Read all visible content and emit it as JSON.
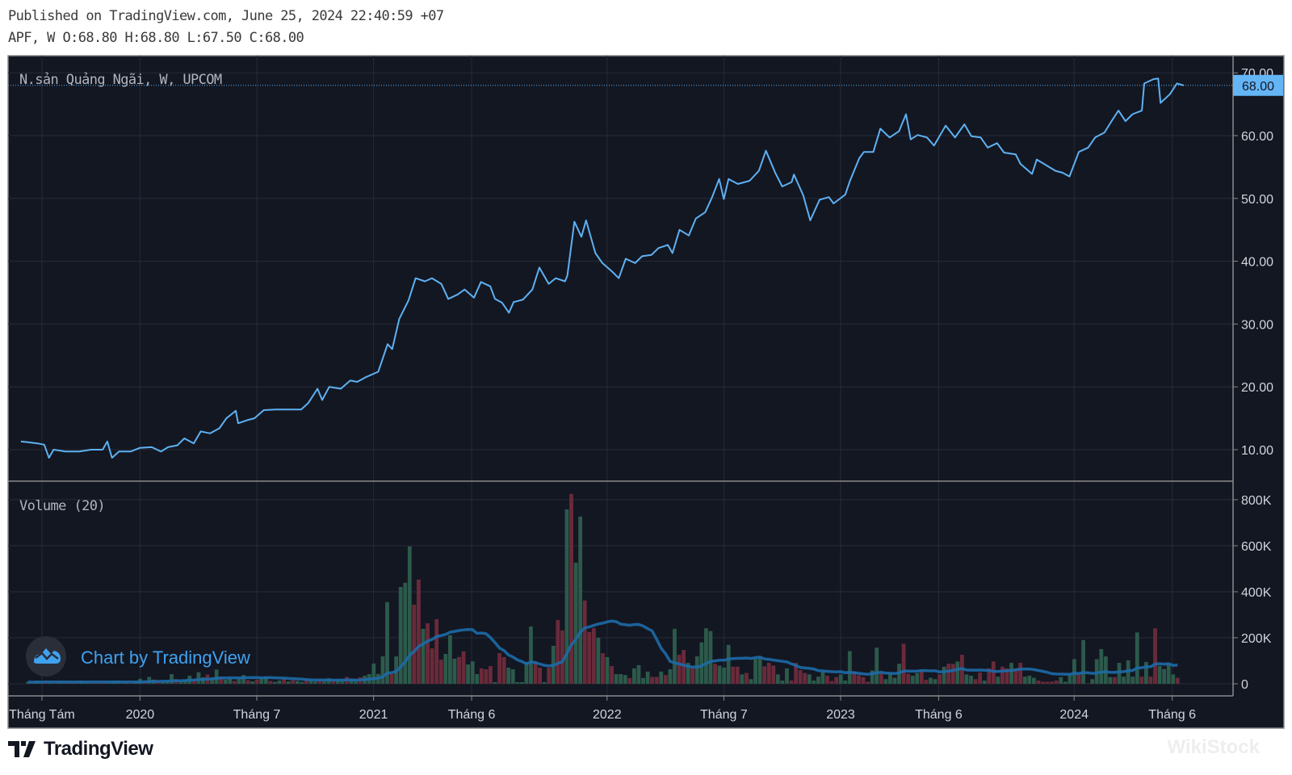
{
  "header": {
    "published": "Published on TradingView.com, June 25, 2024 22:40:59 +07",
    "ohlc": "APF, W O:68.80 H:68.80 L:67.50 C:68.00"
  },
  "legend": {
    "symbol": "N.sản Quảng Ngãi, W, UPCOM",
    "volume": "Volume (20)"
  },
  "watermark": "Chart by TradingView",
  "brand": "TradingView",
  "corner_logo": "WikiStock",
  "colors": {
    "background": "#131722",
    "price_line": "#5eb1f2",
    "last_price_bg": "#64b5f6",
    "vol_up": "#2c5a4b",
    "vol_down": "#6a2a3a",
    "vol_ma": "#1d6aa8",
    "grid": "#262b38"
  },
  "chart_data": {
    "type": "line",
    "title": "N.sản Quảng Ngãi, W, UPCOM",
    "last_price": 68.0,
    "last_price_label": "68.00",
    "price_axis": {
      "ticks": [
        "10.00",
        "20.00",
        "30.00",
        "40.00",
        "50.00",
        "60.00",
        "70.00"
      ],
      "tick_values": [
        10,
        20,
        30,
        40,
        50,
        60,
        70
      ]
    },
    "volume_axis": {
      "ticks": [
        "0",
        "200K",
        "400K",
        "600K",
        "800K"
      ],
      "tick_values": [
        0,
        200,
        400,
        600,
        800
      ],
      "unit": "K"
    },
    "time_axis": {
      "labels": [
        "Tháng Tám",
        "2020",
        "Tháng 7",
        "2021",
        "Tháng 6",
        "2022",
        "Tháng 7",
        "2023",
        "Tháng 6",
        "2024",
        "Tháng 6"
      ],
      "positions_year": [
        2019.58,
        2020.0,
        2020.5,
        2021.0,
        2021.42,
        2022.0,
        2022.5,
        2023.0,
        2023.42,
        2024.0,
        2024.42
      ]
    },
    "price_series": [
      [
        2019.49,
        11.3
      ],
      [
        2019.52,
        11.2
      ],
      [
        2019.56,
        11.0
      ],
      [
        2019.59,
        10.8
      ],
      [
        2019.61,
        8.7
      ],
      [
        2019.63,
        10.0
      ],
      [
        2019.68,
        9.7
      ],
      [
        2019.74,
        9.7
      ],
      [
        2019.79,
        10.0
      ],
      [
        2019.84,
        10.0
      ],
      [
        2019.86,
        11.3
      ],
      [
        2019.88,
        8.7
      ],
      [
        2019.91,
        9.7
      ],
      [
        2019.96,
        9.7
      ],
      [
        2020.0,
        10.3
      ],
      [
        2020.05,
        10.4
      ],
      [
        2020.09,
        9.7
      ],
      [
        2020.12,
        10.4
      ],
      [
        2020.16,
        10.7
      ],
      [
        2020.19,
        11.8
      ],
      [
        2020.23,
        11.0
      ],
      [
        2020.26,
        12.9
      ],
      [
        2020.3,
        12.6
      ],
      [
        2020.34,
        13.4
      ],
      [
        2020.37,
        15.0
      ],
      [
        2020.41,
        16.2
      ],
      [
        2020.42,
        14.2
      ],
      [
        2020.46,
        14.7
      ],
      [
        2020.49,
        15.0
      ],
      [
        2020.53,
        16.3
      ],
      [
        2020.58,
        16.4
      ],
      [
        2020.63,
        16.4
      ],
      [
        2020.69,
        16.4
      ],
      [
        2020.72,
        17.4
      ],
      [
        2020.76,
        19.7
      ],
      [
        2020.78,
        17.9
      ],
      [
        2020.81,
        20.0
      ],
      [
        2020.86,
        19.7
      ],
      [
        2020.9,
        21.0
      ],
      [
        2020.93,
        20.8
      ],
      [
        2020.97,
        21.6
      ],
      [
        2021.02,
        22.4
      ],
      [
        2021.06,
        26.8
      ],
      [
        2021.08,
        26.0
      ],
      [
        2021.11,
        30.8
      ],
      [
        2021.15,
        33.8
      ],
      [
        2021.18,
        37.3
      ],
      [
        2021.22,
        36.8
      ],
      [
        2021.25,
        37.3
      ],
      [
        2021.29,
        36.4
      ],
      [
        2021.32,
        34.0
      ],
      [
        2021.36,
        34.7
      ],
      [
        2021.39,
        35.5
      ],
      [
        2021.43,
        34.2
      ],
      [
        2021.46,
        36.7
      ],
      [
        2021.5,
        36.0
      ],
      [
        2021.52,
        34.0
      ],
      [
        2021.55,
        33.4
      ],
      [
        2021.58,
        31.8
      ],
      [
        2021.6,
        33.5
      ],
      [
        2021.64,
        33.9
      ],
      [
        2021.68,
        35.5
      ],
      [
        2021.71,
        39.0
      ],
      [
        2021.75,
        36.4
      ],
      [
        2021.78,
        37.3
      ],
      [
        2021.82,
        36.8
      ],
      [
        2021.83,
        37.7
      ],
      [
        2021.86,
        46.3
      ],
      [
        2021.89,
        43.9
      ],
      [
        2021.91,
        46.5
      ],
      [
        2021.95,
        41.3
      ],
      [
        2021.98,
        39.7
      ],
      [
        2022.02,
        38.4
      ],
      [
        2022.05,
        37.3
      ],
      [
        2022.08,
        40.4
      ],
      [
        2022.12,
        39.7
      ],
      [
        2022.15,
        40.8
      ],
      [
        2022.19,
        41.0
      ],
      [
        2022.22,
        42.1
      ],
      [
        2022.26,
        42.6
      ],
      [
        2022.28,
        41.3
      ],
      [
        2022.31,
        45.0
      ],
      [
        2022.35,
        44.1
      ],
      [
        2022.38,
        46.8
      ],
      [
        2022.42,
        47.8
      ],
      [
        2022.45,
        50.2
      ],
      [
        2022.48,
        53.1
      ],
      [
        2022.5,
        49.9
      ],
      [
        2022.52,
        53.1
      ],
      [
        2022.56,
        52.3
      ],
      [
        2022.61,
        52.8
      ],
      [
        2022.65,
        54.4
      ],
      [
        2022.68,
        57.6
      ],
      [
        2022.72,
        54.1
      ],
      [
        2022.75,
        51.9
      ],
      [
        2022.79,
        52.6
      ],
      [
        2022.8,
        53.8
      ],
      [
        2022.84,
        50.5
      ],
      [
        2022.87,
        46.5
      ],
      [
        2022.91,
        49.8
      ],
      [
        2022.95,
        50.2
      ],
      [
        2022.97,
        49.2
      ],
      [
        2023.02,
        50.6
      ],
      [
        2023.04,
        52.8
      ],
      [
        2023.08,
        56.4
      ],
      [
        2023.1,
        57.4
      ],
      [
        2023.14,
        57.4
      ],
      [
        2023.17,
        61.1
      ],
      [
        2023.21,
        59.7
      ],
      [
        2023.25,
        60.7
      ],
      [
        2023.28,
        63.4
      ],
      [
        2023.3,
        59.4
      ],
      [
        2023.33,
        60.1
      ],
      [
        2023.37,
        59.7
      ],
      [
        2023.4,
        58.4
      ],
      [
        2023.45,
        61.6
      ],
      [
        2023.49,
        59.7
      ],
      [
        2023.53,
        61.8
      ],
      [
        2023.56,
        59.9
      ],
      [
        2023.6,
        59.7
      ],
      [
        2023.63,
        58.1
      ],
      [
        2023.67,
        58.8
      ],
      [
        2023.7,
        57.3
      ],
      [
        2023.75,
        57.0
      ],
      [
        2023.77,
        55.5
      ],
      [
        2023.82,
        53.9
      ],
      [
        2023.84,
        56.2
      ],
      [
        2023.88,
        55.3
      ],
      [
        2023.92,
        54.4
      ],
      [
        2023.95,
        54.1
      ],
      [
        2023.98,
        53.5
      ],
      [
        2024.02,
        57.4
      ],
      [
        2024.06,
        58.1
      ],
      [
        2024.09,
        59.7
      ],
      [
        2024.13,
        60.5
      ],
      [
        2024.16,
        62.3
      ],
      [
        2024.19,
        64.0
      ],
      [
        2024.22,
        62.3
      ],
      [
        2024.25,
        63.4
      ],
      [
        2024.29,
        64.0
      ],
      [
        2024.3,
        68.3
      ],
      [
        2024.34,
        69.0
      ],
      [
        2024.36,
        69.1
      ],
      [
        2024.37,
        65.2
      ],
      [
        2024.41,
        66.6
      ],
      [
        2024.44,
        68.3
      ],
      [
        2024.47,
        68.0
      ]
    ],
    "volume_start_year": 2019.52,
    "volume_k": [
      8,
      6,
      10,
      5,
      12,
      7,
      5,
      9,
      6,
      8,
      5,
      10,
      12,
      6,
      8,
      5,
      7,
      9,
      6,
      10,
      14,
      8,
      6,
      5,
      9,
      22,
      12,
      30,
      18,
      10,
      8,
      15,
      42,
      20,
      12,
      18,
      35,
      20,
      50,
      28,
      40,
      25,
      62,
      30,
      18,
      24,
      12,
      20,
      38,
      15,
      10,
      18,
      25,
      30,
      12,
      8,
      14,
      22,
      10,
      16,
      12,
      8,
      20,
      14,
      10,
      18,
      12,
      24,
      16,
      20,
      14,
      30,
      22,
      18,
      28,
      35,
      42,
      88,
      43,
      119,
      355,
      43,
      119,
      421,
      439,
      597,
      344,
      453,
      239,
      263,
      154,
      281,
      105,
      130,
      211,
      109,
      116,
      141,
      84,
      98,
      42,
      67,
      63,
      77,
      7,
      133,
      116,
      70,
      63,
      7,
      7,
      95,
      249,
      95,
      70,
      7,
      70,
      165,
      277,
      232,
      758,
      825,
      526,
      727,
      362,
      225,
      242,
      200,
      133,
      116,
      77,
      42,
      42,
      38,
      25,
      67,
      81,
      25,
      53,
      30,
      30,
      53,
      38,
      63,
      239,
      126,
      147,
      91,
      70,
      119,
      180,
      241,
      229,
      87,
      79,
      70,
      169,
      74,
      74,
      41,
      47,
      20,
      107,
      114,
      76,
      91,
      79,
      41,
      14,
      67,
      14,
      91,
      60,
      47,
      41,
      14,
      31,
      52,
      35,
      12,
      29,
      41,
      14,
      142,
      52,
      37,
      29,
      9,
      58,
      157,
      47,
      20,
      47,
      26,
      87,
      174,
      44,
      35,
      47,
      58,
      17,
      26,
      20,
      41,
      74,
      87,
      87,
      97,
      126,
      41,
      35,
      20,
      49,
      14,
      67,
      97,
      31,
      74,
      67,
      91,
      67,
      91,
      31,
      35,
      26,
      14,
      9,
      9,
      9,
      14,
      29,
      9,
      41,
      107,
      41,
      190,
      2,
      20,
      107,
      151,
      119,
      29,
      29,
      91,
      31,
      102,
      31,
      223,
      31,
      95,
      31,
      241,
      78,
      64,
      87,
      41,
      26
    ],
    "volume_up": [
      1,
      0,
      1,
      1,
      0,
      1,
      0,
      1,
      1,
      0,
      1,
      0,
      1,
      1,
      0,
      1,
      0,
      0,
      1,
      1,
      1,
      0,
      1,
      0,
      1,
      1,
      0,
      1,
      1,
      0,
      1,
      1,
      1,
      0,
      1,
      1,
      1,
      0,
      1,
      1,
      0,
      1,
      1,
      0,
      1,
      1,
      0,
      1,
      1,
      0,
      1,
      0,
      1,
      1,
      0,
      1,
      1,
      0,
      1,
      0,
      1,
      1,
      0,
      1,
      1,
      0,
      1,
      1,
      0,
      1,
      1,
      0,
      1,
      1,
      0,
      1,
      1,
      1,
      1,
      1,
      1,
      0,
      1,
      1,
      1,
      1,
      0,
      0,
      1,
      0,
      0,
      0,
      0,
      1,
      1,
      1,
      0,
      0,
      1,
      1,
      1,
      0,
      0,
      0,
      1,
      0,
      0,
      1,
      1,
      1,
      1,
      1,
      1,
      0,
      0,
      1,
      0,
      1,
      0,
      0,
      1,
      0,
      1,
      1,
      0,
      0,
      0,
      1,
      0,
      1,
      0,
      1,
      1,
      1,
      0,
      1,
      1,
      1,
      1,
      0,
      0,
      1,
      0,
      1,
      1,
      0,
      0,
      1,
      0,
      1,
      1,
      1,
      1,
      0,
      1,
      1,
      1,
      0,
      0,
      1,
      0,
      1,
      1,
      1,
      0,
      0,
      0,
      1,
      1,
      1,
      0,
      0,
      0,
      0,
      1,
      1,
      1,
      1,
      0,
      0,
      0,
      1,
      1,
      1,
      0,
      0,
      0,
      0,
      1,
      1,
      0,
      1,
      1,
      1,
      1,
      0,
      0,
      1,
      1,
      0,
      0,
      1,
      1,
      0,
      1,
      0,
      0,
      1,
      0,
      1,
      1,
      0,
      0,
      1,
      0,
      0,
      1,
      0,
      0,
      1,
      0,
      0,
      1,
      1,
      1,
      0,
      0,
      0,
      0,
      0,
      1,
      1,
      1,
      1,
      0,
      1,
      0,
      1,
      1,
      1,
      1,
      1,
      0,
      1,
      1,
      1,
      1,
      1,
      0,
      1,
      0,
      0,
      1,
      1,
      1,
      1,
      0
    ],
    "volume_ma_period": 20,
    "ylim_price": [
      10,
      70
    ],
    "ylim_volume_k": [
      0,
      800
    ],
    "grid": true
  }
}
